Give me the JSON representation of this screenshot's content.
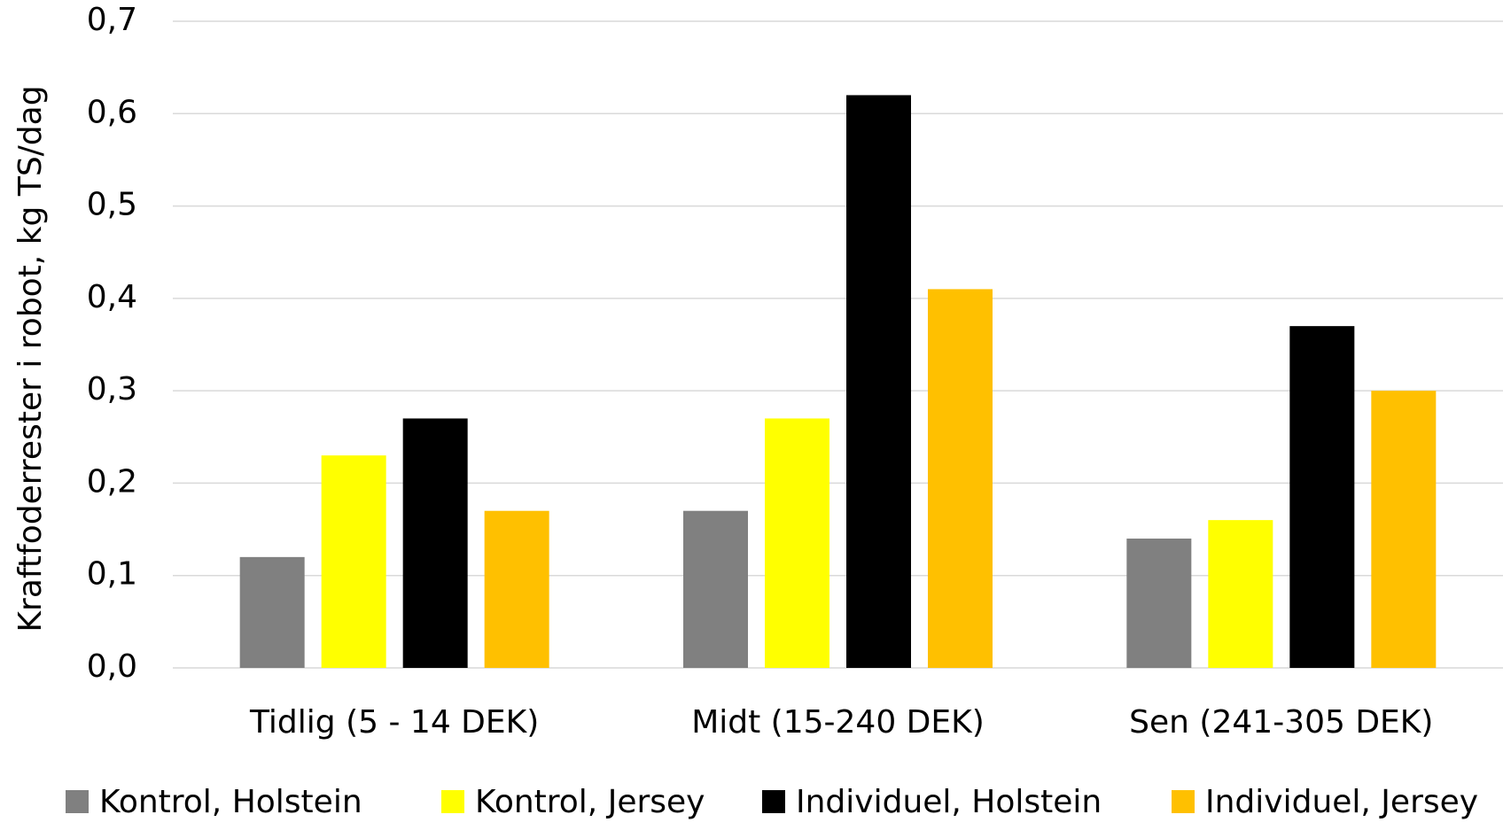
{
  "chart_data": {
    "type": "bar",
    "y_label": "Kraftfoderrester i robot, kg TS/dag",
    "categories": [
      "Tidlig (5 - 14 DEK)",
      "Midt (15-240 DEK)",
      "Sen (241-305 DEK)"
    ],
    "series": [
      {
        "name": "Kontrol, Holstein",
        "color": "#808080",
        "values": [
          0.12,
          0.17,
          0.14
        ]
      },
      {
        "name": "Kontrol, Jersey",
        "color": "#ffff00",
        "values": [
          0.23,
          0.27,
          0.16
        ]
      },
      {
        "name": "Individuel, Holstein",
        "color": "#000000",
        "values": [
          0.27,
          0.62,
          0.37
        ]
      },
      {
        "name": "Individuel, Jersey",
        "color": "#ffc000",
        "values": [
          0.17,
          0.41,
          0.3
        ]
      }
    ],
    "ylim": [
      0,
      0.7
    ],
    "yticks": [
      {
        "value": 0,
        "label": "0,0"
      },
      {
        "value": 0.1,
        "label": "0,1"
      },
      {
        "value": 0.2,
        "label": "0,2"
      },
      {
        "value": 0.3,
        "label": "0,3"
      },
      {
        "value": 0.4,
        "label": "0,4"
      },
      {
        "value": 0.5,
        "label": "0,5"
      },
      {
        "value": 0.6,
        "label": "0,6"
      },
      {
        "value": 0.7,
        "label": "0,7"
      }
    ],
    "grid": true,
    "legend": "bottom"
  }
}
